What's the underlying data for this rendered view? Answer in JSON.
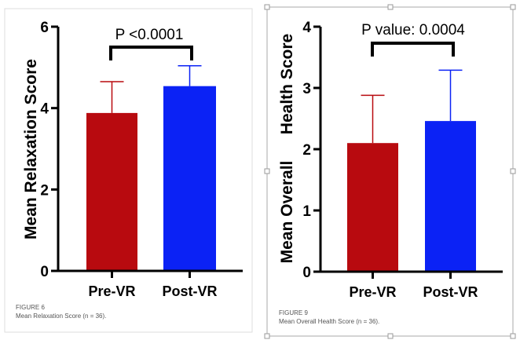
{
  "chart_data": [
    {
      "type": "bar",
      "title": "",
      "ylabel": "Mean Relaxation Score",
      "ylim": [
        0,
        6
      ],
      "yticks": [
        0,
        2,
        4,
        6
      ],
      "categories": [
        "Pre-VR",
        "Post-VR"
      ],
      "values": [
        3.88,
        4.54
      ],
      "error_upper": [
        4.65,
        5.04
      ],
      "colors": [
        "#b80a0f",
        "#0b22f5"
      ],
      "annotation": "P <0.0001",
      "caption_label": "FIGURE 6",
      "caption_text": "Mean Relaxation Score (n = 36)."
    },
    {
      "type": "bar",
      "title": "",
      "ylabel_lines": [
        "Mean Overall",
        "Health Score"
      ],
      "ylim": [
        0,
        4
      ],
      "yticks": [
        0,
        1,
        2,
        3,
        4
      ],
      "categories": [
        "Pre-VR",
        "Post-VR"
      ],
      "values": [
        2.1,
        2.46
      ],
      "error_upper": [
        2.88,
        3.29
      ],
      "colors": [
        "#b80a0f",
        "#0b22f5"
      ],
      "annotation": "P value: 0.0004",
      "caption_label": "FIGURE 9",
      "caption_text": "Mean Overall Health Score (n = 36)."
    }
  ]
}
